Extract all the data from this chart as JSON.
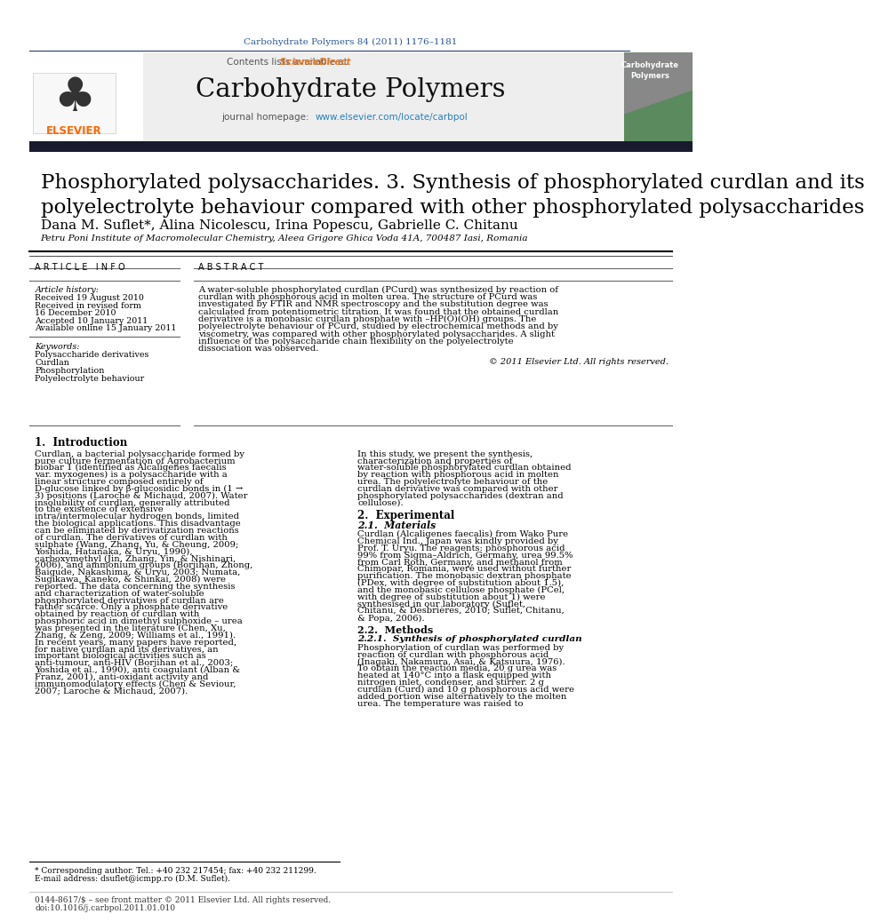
{
  "journal_ref": "Carbohydrate Polymers 84 (2011) 1176–1181",
  "journal_name": "Carbohydrate Polymers",
  "contents_text": "Contents lists available at ScienceDirect",
  "journal_homepage": "journal homepage: www.elsevier.com/locate/carbpol",
  "title": "Phosphorylated polysaccharides. 3. Synthesis of phosphorylated curdlan and its\npolyelectrolyte behaviour compared with other phosphorylated polysaccharides",
  "authors": "Dana M. Suflet*, Alina Nicolescu, Irina Popescu, Gabrielle C. Chitanu",
  "affiliation": "Petru Poni Institute of Macromolecular Chemistry, Aleea Grigore Ghica Voda 41A, 700487 Iasi, Romania",
  "article_info_label": "A R T I C L E   I N F O",
  "abstract_label": "A B S T R A C T",
  "article_history_label": "Article history:",
  "received1": "Received 19 August 2010",
  "received2": "Received in revised form",
  "received2b": "16 December 2010",
  "accepted": "Accepted 10 January 2011",
  "available": "Available online 15 January 2011",
  "keywords_label": "Keywords:",
  "keywords": [
    "Polysaccharide derivatives",
    "Curdlan",
    "Phosphorylation",
    "Polyelectrolyte behaviour"
  ],
  "abstract_text": "A water-soluble phosphorylated curdlan (PCurd) was synthesized by reaction of curdlan with phosphorous acid in molten urea. The structure of PCurd was investigated by FTIR and NMR spectroscopy and the substitution degree was calculated from potentiometric titration. It was found that the obtained curdlan derivative is a monobasic curdlan phosphate with –HP(O)(OH) groups. The polyelectrolyte behaviour of PCurd, studied by electrochemical methods and by viscometry, was compared with other phosphorylated polysaccharides. A slight influence of the polysaccharide chain flexibility on the polyelectrolyte dissociation was observed.",
  "copyright": "© 2011 Elsevier Ltd. All rights reserved.",
  "section1_title": "1.  Introduction",
  "section1_left": "Curdlan, a bacterial polysaccharide formed by pure culture fermentation of Agrobacterium biobar 1 (identified as Alcaligenes faecalis var. myxogenes) is a polysaccharide with a linear structure composed entirely of D-glucose linked by β-glucosidic bonds in (1 → 3) positions (Laroche & Michaud, 2007). Water insolubility of curdlan, generally attributed to the existence of extensive intra/intermolecular hydrogen bonds, limited the biological applications. This disadvantage can be eliminated by derivatization reactions of curdlan. The derivatives of curdlan with sulphate (Wang, Zhang, Yu, & Cheung, 2009; Yoshida, Hatanaka, & Uryu, 1990), carboxymethyl (Jin, Zhang, Yin, & Nishinari, 2006), and ammonium groups (Borjihan, Zhong, Baigude, Nakashima, & Uryu, 2003; Numata, Sugikawa, Kaneko, & Shinkai, 2008) were reported. The data concerning the synthesis and characterization of water-soluble phosphorylated derivatives of curdlan are rather scarce. Only a phosphate derivative obtained by reaction of curdlan with phosphoric acid in dimethyl sulphoxide – urea was presented in the literature (Chen, Xu, Zhang, & Zeng, 2009; Williams et al., 1991). In recent years, many papers have reported, for native curdlan and its derivatives, an important biological activities such as anti-tumour, anti-HIV (Borjihan et al., 2003; Yoshida et al., 1990), anti coagulant (Alban & Franz, 2001), anti-oxidant activity and immunomodulatory effects (Chen & Seviour, 2007; Laroche & Michaud, 2007).",
  "section1_right": "In this study, we present the synthesis, characterization and properties of water-soluble phosphorylated curdlan obtained by reaction with phosphorous acid in molten urea. The polyelectrolyte behaviour of the curdlan derivative was compared with other phosphorylated polysaccharides (dextran and cellulose).",
  "section2_title": "2.  Experimental",
  "section21_title": "2.1.  Materials",
  "section21_text": "Curdlan (Alcaligenes faecalis) from Wako Pure Chemical Ind., Japan was kindly provided by Prof. T. Uryu. The reagents: phosphorous acid 99% from Sigma–Aldrich, Germany, urea 99.5% from Carl Roth, Germany, and methanol from Chimopar, Romania, were used without further purification. The monobasic dextran phosphate (PDex, with degree of substitution about 1.5), and the monobasic cellulose phosphate (PCel, with degree of substitution about 1) were synthesised in our laboratory (Suflet, Chitanu, & Desbrières, 2010; Suflet, Chitanu, & Popa, 2006).",
  "section22_title": "2.2.  Methods",
  "section221_title": "2.2.1.  Synthesis of phosphorylated curdlan",
  "section221_text": "Phosphorylation of curdlan was performed by reaction of curdlan with phosphorous acid (Inagaki, Nakamura, Asai, & Katsuura, 1976). To obtain the reaction media, 20 g urea was heated at 140°C into a flask equipped with nitrogen inlet, condenser, and stirrer. 2 g curdlan (Curd) and 10 g phosphorous acid were added portion wise alternatively to the molten urea. The temperature was raised to",
  "footnote1": "* Corresponding author. Tel.: +40 232 217454; fax: +40 232 211299.",
  "footnote2": "E-mail address: dsuflet@icmpp.ro (D.M. Suflet).",
  "footer1": "0144-8617/$ – see front matter © 2011 Elsevier Ltd. All rights reserved.",
  "footer2": "doi:10.1016/j.carbpol.2011.01.010",
  "bg_color": "#ffffff",
  "header_bg": "#eeeeee",
  "dark_bar_color": "#1a1a2e",
  "journal_ref_color": "#2b5797",
  "sciencedirect_color": "#e87722",
  "link_color": "#2980b9",
  "text_color": "#000000",
  "elsevier_orange": "#ff6600",
  "elsevier_blue": "#003366"
}
